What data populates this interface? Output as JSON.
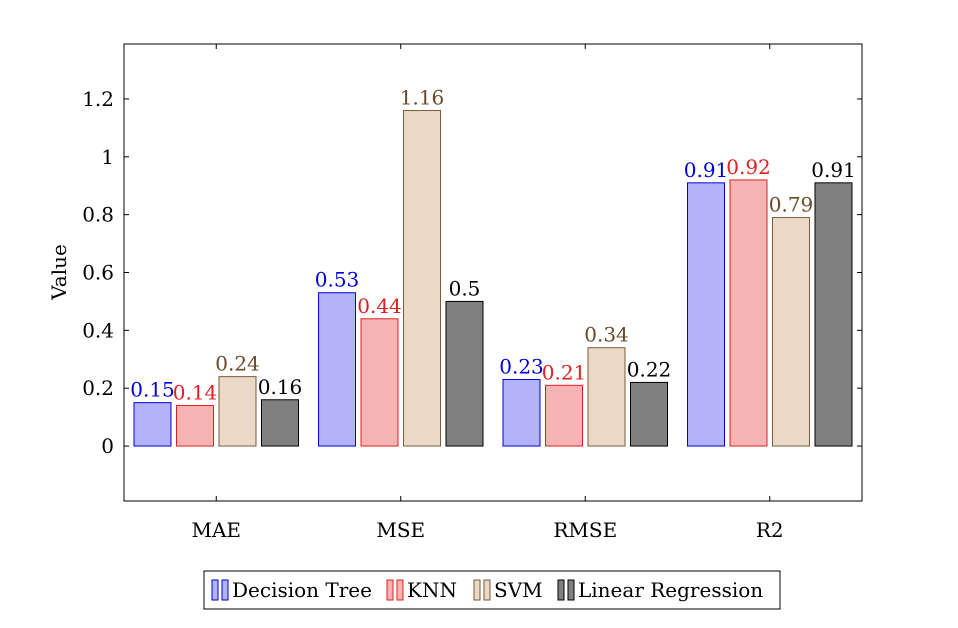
{
  "chart_data": {
    "type": "bar",
    "title": "",
    "xlabel": "",
    "ylabel": "Value",
    "categories": [
      "MAE",
      "MSE",
      "RMSE",
      "R2"
    ],
    "series": [
      {
        "name": "Decision Tree",
        "values": [
          0.15,
          0.53,
          0.23,
          0.91
        ],
        "labels": [
          "0.15",
          "0.53",
          "0.23",
          "0.91"
        ],
        "fill": "#b3b3fa",
        "stroke": "#0000d8",
        "label_color": "#0000d8"
      },
      {
        "name": "KNN",
        "values": [
          0.14,
          0.44,
          0.21,
          0.92
        ],
        "labels": [
          "0.14",
          "0.44",
          "0.21",
          "0.92"
        ],
        "fill": "#f5b3b3",
        "stroke": "#e02020",
        "label_color": "#e02020"
      },
      {
        "name": "SVM",
        "values": [
          0.24,
          1.16,
          0.34,
          0.79
        ],
        "labels": [
          "0.24",
          "1.16",
          "0.34",
          "0.79"
        ],
        "fill": "#e9d9c6",
        "stroke": "#7a5a3a",
        "label_color": "#6b4a2a"
      },
      {
        "name": "Linear Regression",
        "values": [
          0.16,
          0.5,
          0.22,
          0.91
        ],
        "labels": [
          "0.16",
          "0.5",
          "0.22",
          "0.91"
        ],
        "fill": "#808080",
        "stroke": "#000000",
        "label_color": "#000000"
      }
    ],
    "yticks": [
      {
        "value": 0,
        "label": "0"
      },
      {
        "value": 0.2,
        "label": "0.2"
      },
      {
        "value": 0.4,
        "label": "0.4"
      },
      {
        "value": 0.6,
        "label": "0.6"
      },
      {
        "value": 0.8,
        "label": "0.8"
      },
      {
        "value": 1.0,
        "label": "1"
      },
      {
        "value": 1.2,
        "label": "1.2"
      }
    ],
    "ylim": [
      -0.19,
      1.39
    ],
    "grid": false,
    "legend_position": "bottom-center"
  }
}
